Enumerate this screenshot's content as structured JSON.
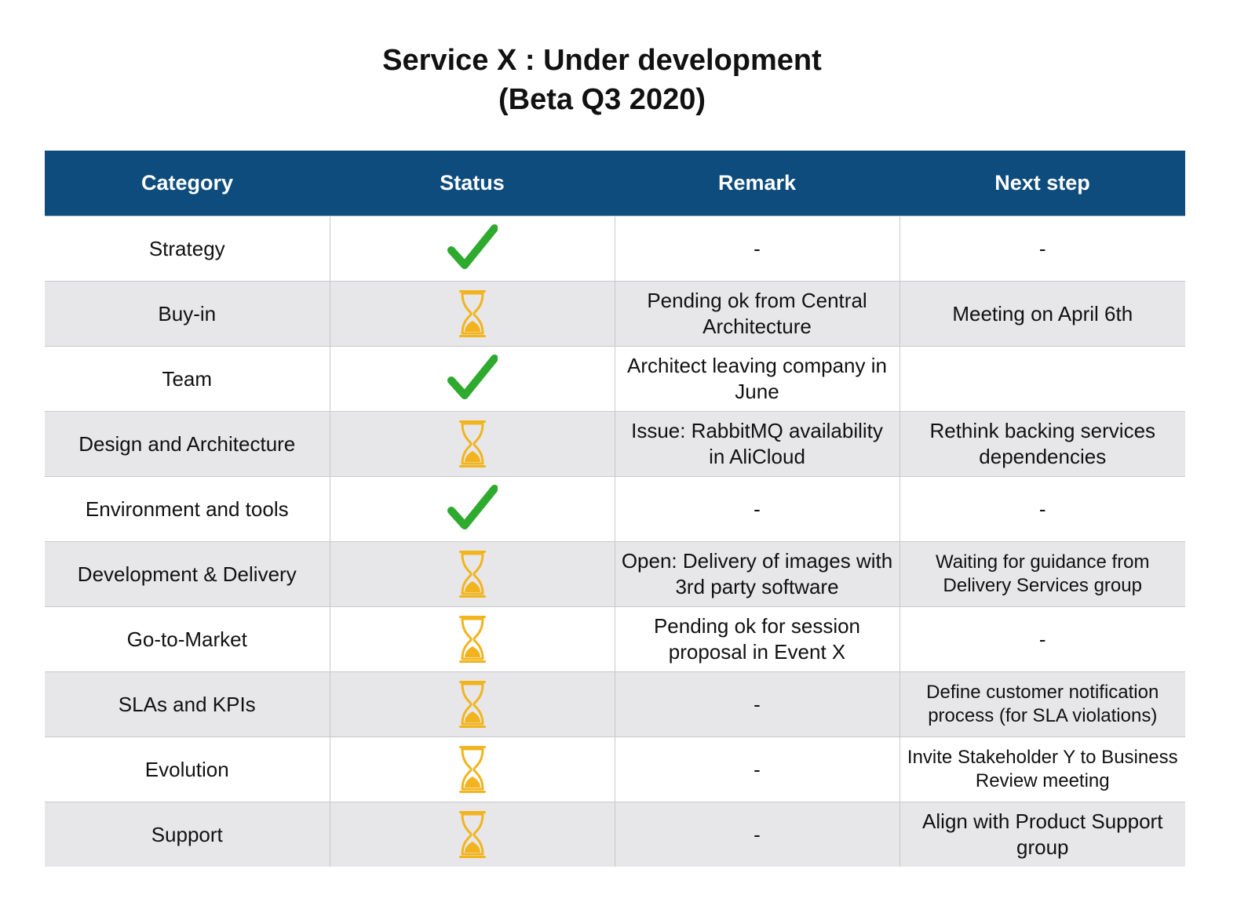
{
  "title": {
    "line1": "Service X : Under development",
    "line2": "(Beta Q3 2020)"
  },
  "table": {
    "headers": [
      "Category",
      "Status",
      "Remark",
      "Next step"
    ],
    "rows": [
      {
        "category": "Strategy",
        "status": "done",
        "remark": "-",
        "next": "-"
      },
      {
        "category": "Buy-in",
        "status": "pending",
        "remark": "Pending ok from Central Architecture",
        "next": "Meeting on April 6th"
      },
      {
        "category": "Team",
        "status": "done",
        "remark": "Architect leaving company in June",
        "next": ""
      },
      {
        "category": "Design and Architecture",
        "status": "pending",
        "remark": "Issue: RabbitMQ availability in AliCloud",
        "next": "Rethink backing services dependencies"
      },
      {
        "category": "Environment and tools",
        "status": "done",
        "remark": "-",
        "next": "-"
      },
      {
        "category": "Development & Delivery",
        "status": "pending",
        "remark": "Open: Delivery of images with 3rd party software",
        "next": "Waiting for guidance from Delivery Services group"
      },
      {
        "category": "Go-to-Market",
        "status": "pending",
        "remark": "Pending ok for session proposal in Event X",
        "next": "-"
      },
      {
        "category": "SLAs and KPIs",
        "status": "pending",
        "remark": "-",
        "next": "Define customer notification process (for SLA violations)"
      },
      {
        "category": "Evolution",
        "status": "pending",
        "remark": "-",
        "next": "Invite Stakeholder Y to Business Review meeting"
      },
      {
        "category": "Support",
        "status": "pending",
        "remark": "-",
        "next": "Align with Product Support group"
      }
    ]
  },
  "icons": {
    "done": "checkmark-icon",
    "pending": "hourglass-icon"
  },
  "colors": {
    "header_bg": "#0d4c7d",
    "check": "#2eaa2e",
    "hourglass": "#f2b41e",
    "alt_row": "#e7e7ea"
  }
}
